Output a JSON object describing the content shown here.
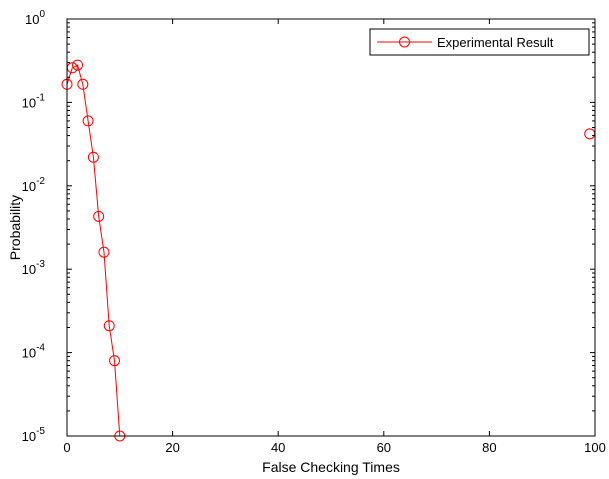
{
  "chart_data": {
    "type": "line",
    "title": "",
    "xlabel": "False Checking Times",
    "ylabel": "Probability",
    "xlim": [
      0,
      100
    ],
    "ylim": [
      1e-05,
      1
    ],
    "yscale": "log",
    "grid": false,
    "legend_position": "top-right",
    "x_ticks": [
      {
        "value": 0,
        "label": "0"
      },
      {
        "value": 20,
        "label": "20"
      },
      {
        "value": 40,
        "label": "40"
      },
      {
        "value": 60,
        "label": "60"
      },
      {
        "value": 80,
        "label": "80"
      },
      {
        "value": 100,
        "label": "100"
      }
    ],
    "y_ticks": [
      {
        "value": 1,
        "base": "10",
        "exp": "0"
      },
      {
        "value": 0.1,
        "base": "10",
        "exp": "-1"
      },
      {
        "value": 0.01,
        "base": "10",
        "exp": "-2"
      },
      {
        "value": 0.001,
        "base": "10",
        "exp": "-3"
      },
      {
        "value": 0.0001,
        "base": "10",
        "exp": "-4"
      },
      {
        "value": 1e-05,
        "base": "10",
        "exp": "-5"
      }
    ],
    "series": [
      {
        "name": "Experimental Result",
        "color": "#ff0000",
        "marker": "circle",
        "x": [
          0,
          1,
          2,
          3,
          4,
          5,
          6,
          7,
          8,
          9,
          10,
          99
        ],
        "y": [
          0.165,
          0.26,
          0.28,
          0.165,
          0.06,
          0.022,
          0.0043,
          0.0016,
          0.00021,
          8e-05,
          1e-05,
          0.042
        ]
      }
    ]
  }
}
